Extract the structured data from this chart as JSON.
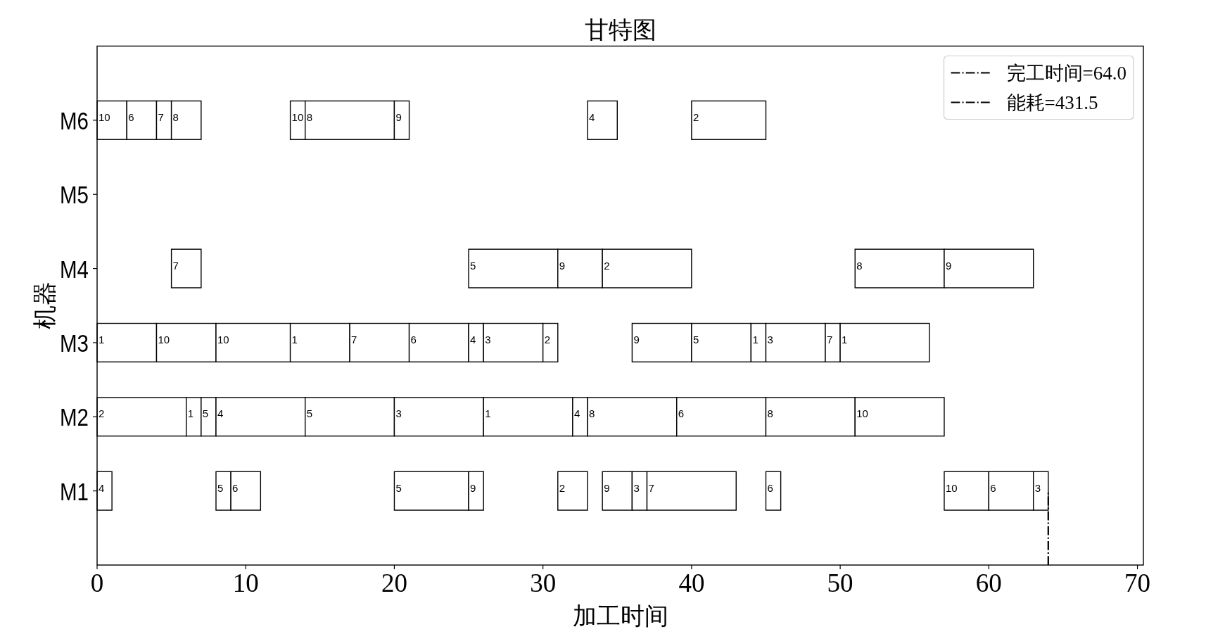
{
  "chart_data": {
    "type": "bar",
    "orientation": "horizontal",
    "title": "甘特图",
    "xlabel": "加工时间",
    "ylabel": "机器",
    "categories": [
      "M6",
      "M5",
      "M4",
      "M3",
      "M2",
      "M1"
    ],
    "xlim": [
      0,
      70.4
    ],
    "xticks": [
      0,
      10,
      20,
      30,
      40,
      50,
      60,
      70
    ],
    "grid": false,
    "legend": "top right",
    "series": [
      {
        "color": "#ffffff",
        "base": [
          0,
          null,
          5,
          0,
          0,
          0
        ],
        "values": [
          2,
          null,
          2,
          4,
          6,
          1
        ]
      },
      {
        "color": "#ffffff",
        "base": [
          2,
          null,
          25,
          4,
          6,
          8
        ],
        "values": [
          2,
          null,
          6,
          4,
          1,
          1
        ]
      },
      {
        "color": "#ffffff",
        "base": [
          4,
          null,
          31,
          8,
          7,
          9
        ],
        "values": [
          1,
          null,
          3,
          5,
          1,
          2
        ]
      },
      {
        "color": "#ffffff",
        "base": [
          5,
          null,
          34,
          13,
          8,
          20
        ],
        "values": [
          2,
          null,
          6,
          4,
          6,
          5
        ]
      },
      {
        "color": "#ffffff",
        "base": [
          13,
          null,
          51,
          17,
          14,
          25
        ],
        "values": [
          1,
          null,
          6,
          4,
          6,
          1
        ]
      },
      {
        "color": "#ffffff",
        "base": [
          14,
          null,
          57,
          21,
          20,
          31
        ],
        "values": [
          6,
          null,
          6,
          4,
          6,
          2
        ]
      },
      {
        "color": "#ffffff",
        "base": [
          20,
          null,
          null,
          25,
          26,
          34
        ],
        "values": [
          1,
          null,
          null,
          1,
          6,
          2
        ]
      },
      {
        "color": "#ffffff",
        "base": [
          33,
          null,
          null,
          26,
          32,
          36
        ],
        "values": [
          2,
          null,
          null,
          4,
          1,
          1
        ]
      },
      {
        "color": "#ffffff",
        "base": [
          40,
          null,
          null,
          30,
          33,
          37
        ],
        "values": [
          5,
          null,
          null,
          1,
          6,
          6
        ]
      },
      {
        "color": "#ffffff",
        "base": [
          null,
          null,
          null,
          36,
          39,
          45
        ],
        "values": [
          null,
          null,
          null,
          4,
          6,
          1
        ]
      },
      {
        "color": "#ffffff",
        "base": [
          null,
          null,
          null,
          40,
          45,
          57
        ],
        "values": [
          null,
          null,
          null,
          4,
          6,
          3
        ]
      },
      {
        "color": "#ffffff",
        "base": [
          null,
          null,
          null,
          44,
          51,
          60
        ],
        "values": [
          null,
          null,
          null,
          1,
          6,
          3
        ]
      },
      {
        "color": "#ffffff",
        "base": [
          null,
          null,
          null,
          45,
          null,
          63
        ],
        "values": [
          null,
          null,
          null,
          4,
          null,
          1
        ]
      },
      {
        "color": "#ffffff",
        "base": [
          null,
          null,
          null,
          49,
          null,
          null
        ],
        "values": [
          null,
          null,
          null,
          1,
          null,
          null
        ]
      },
      {
        "color": "#ffffff",
        "base": [
          null,
          null,
          null,
          50,
          null,
          null
        ],
        "values": [
          null,
          null,
          null,
          6,
          null,
          null
        ]
      },
      {
        "type": "line",
        "name": "能耗=431.5",
        "color": "#000000",
        "line_style": "dashdot",
        "values": [
          null,
          null,
          null,
          null,
          null,
          null
        ]
      }
    ],
    "ref_lines": [
      {
        "axis": "x",
        "value": 64,
        "label": "完工时间=64.0",
        "color": "#000000",
        "line_style": "dashdot"
      }
    ],
    "annotations": [
      {
        "text": "10",
        "x": 0,
        "y": "M6"
      },
      {
        "text": "6",
        "x": 2,
        "y": "M6"
      },
      {
        "text": "7",
        "x": 4,
        "y": "M6"
      },
      {
        "text": "8",
        "x": 5,
        "y": "M6"
      },
      {
        "text": "10",
        "x": 13,
        "y": "M6"
      },
      {
        "text": "8",
        "x": 14,
        "y": "M6"
      },
      {
        "text": "9",
        "x": 20,
        "y": "M6"
      },
      {
        "text": "4",
        "x": 33,
        "y": "M6"
      },
      {
        "text": "2",
        "x": 40,
        "y": "M6"
      },
      {
        "text": "7",
        "x": 5,
        "y": "M4"
      },
      {
        "text": "5",
        "x": 25,
        "y": "M4"
      },
      {
        "text": "9",
        "x": 31,
        "y": "M4"
      },
      {
        "text": "2",
        "x": 34,
        "y": "M4"
      },
      {
        "text": "8",
        "x": 51,
        "y": "M4"
      },
      {
        "text": "9",
        "x": 57,
        "y": "M4"
      },
      {
        "text": "1",
        "x": 0,
        "y": "M3"
      },
      {
        "text": "10",
        "x": 4,
        "y": "M3"
      },
      {
        "text": "10",
        "x": 8,
        "y": "M3"
      },
      {
        "text": "1",
        "x": 13,
        "y": "M3"
      },
      {
        "text": "7",
        "x": 17,
        "y": "M3"
      },
      {
        "text": "6",
        "x": 21,
        "y": "M3"
      },
      {
        "text": "4",
        "x": 25,
        "y": "M3"
      },
      {
        "text": "3",
        "x": 26,
        "y": "M3"
      },
      {
        "text": "2",
        "x": 30,
        "y": "M3"
      },
      {
        "text": "9",
        "x": 36,
        "y": "M3"
      },
      {
        "text": "5",
        "x": 40,
        "y": "M3"
      },
      {
        "text": "1",
        "x": 44,
        "y": "M3"
      },
      {
        "text": "3",
        "x": 45,
        "y": "M3"
      },
      {
        "text": "7",
        "x": 49,
        "y": "M3"
      },
      {
        "text": "1",
        "x": 50,
        "y": "M3"
      },
      {
        "text": "2",
        "x": 0,
        "y": "M2"
      },
      {
        "text": "1",
        "x": 6,
        "y": "M2"
      },
      {
        "text": "5",
        "x": 7,
        "y": "M2"
      },
      {
        "text": "4",
        "x": 8,
        "y": "M2"
      },
      {
        "text": "5",
        "x": 14,
        "y": "M2"
      },
      {
        "text": "3",
        "x": 20,
        "y": "M2"
      },
      {
        "text": "1",
        "x": 26,
        "y": "M2"
      },
      {
        "text": "4",
        "x": 32,
        "y": "M2"
      },
      {
        "text": "8",
        "x": 33,
        "y": "M2"
      },
      {
        "text": "6",
        "x": 39,
        "y": "M2"
      },
      {
        "text": "8",
        "x": 45,
        "y": "M2"
      },
      {
        "text": "10",
        "x": 51,
        "y": "M2"
      },
      {
        "text": "4",
        "x": 0,
        "y": "M1"
      },
      {
        "text": "5",
        "x": 8,
        "y": "M1"
      },
      {
        "text": "6",
        "x": 9,
        "y": "M1"
      },
      {
        "text": "5",
        "x": 20,
        "y": "M1"
      },
      {
        "text": "9",
        "x": 25,
        "y": "M1"
      },
      {
        "text": "2",
        "x": 31,
        "y": "M1"
      },
      {
        "text": "9",
        "x": 34,
        "y": "M1"
      },
      {
        "text": "3",
        "x": 36,
        "y": "M1"
      },
      {
        "text": "7",
        "x": 37,
        "y": "M1"
      },
      {
        "text": "6",
        "x": 45,
        "y": "M1"
      },
      {
        "text": "10",
        "x": 57,
        "y": "M1"
      },
      {
        "text": "6",
        "x": 60,
        "y": "M1"
      },
      {
        "text": "3",
        "x": 63,
        "y": "M1"
      }
    ]
  }
}
